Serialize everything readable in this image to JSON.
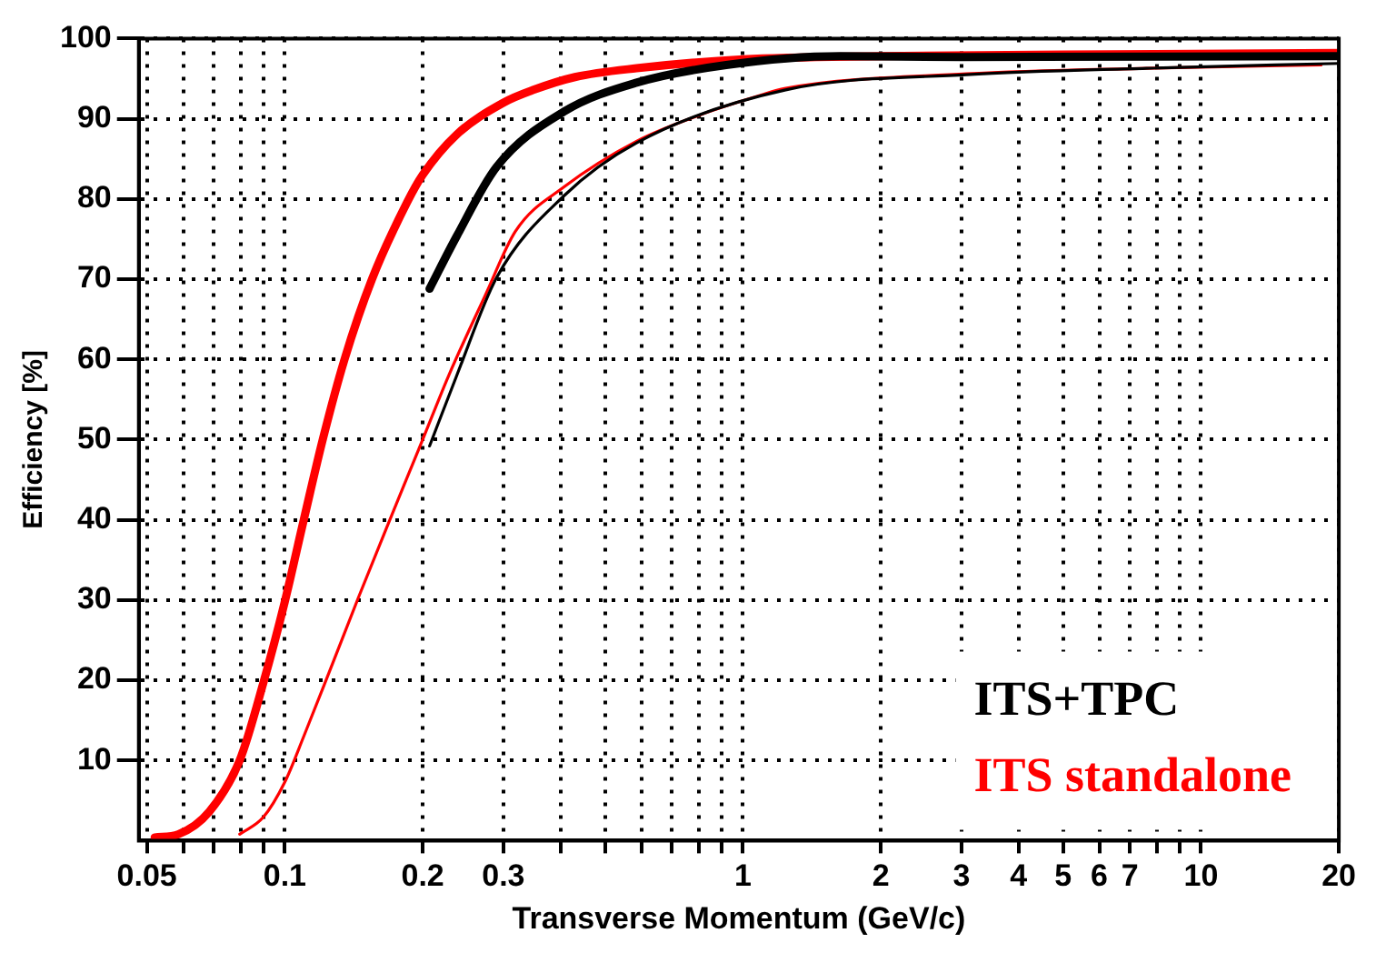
{
  "chart_data": {
    "type": "line",
    "xlabel": "Transverse Momentum (GeV/c)",
    "ylabel": "Efficiency [%]",
    "log": "x",
    "grid": true,
    "legend": "bottom right",
    "marker": "none",
    "line_style": "solid",
    "xlim": [
      0.048,
      20
    ],
    "ylim": [
      0,
      100
    ],
    "xticks": [
      0.05,
      {
        "value": 0.06,
        "label": null
      },
      {
        "value": 0.07,
        "label": null
      },
      {
        "value": 0.08,
        "label": null
      },
      {
        "value": 0.09,
        "label": null
      },
      0.1,
      0.2,
      0.3,
      {
        "value": 0.4,
        "label": null
      },
      {
        "value": 0.5,
        "label": null
      },
      {
        "value": 0.6,
        "label": null
      },
      {
        "value": 0.7,
        "label": null
      },
      {
        "value": 0.8,
        "label": null
      },
      {
        "value": 0.9,
        "label": null
      },
      1,
      2,
      3,
      4,
      5,
      6,
      7,
      {
        "value": 8,
        "label": null
      },
      {
        "value": 9,
        "label": null
      },
      10,
      20
    ],
    "yticks": [
      10,
      20,
      30,
      40,
      50,
      60,
      70,
      80,
      90,
      100
    ],
    "series": [
      {
        "name": "ITS+TPC",
        "color": "#000000",
        "x": [
          0.207,
          0.237,
          0.29,
          0.407,
          0.586,
          0.92,
          1.63,
          3,
          20
        ],
        "values": [
          68.8,
          75.3,
          84,
          90.9,
          94.5,
          96.7,
          97.8,
          97.7,
          97.8
        ]
      },
      {
        "color": "#000000",
        "x": [
          0.207,
          0.237,
          0.29,
          0.407,
          0.586,
          1.24,
          3.08,
          7.6,
          20
        ],
        "values": [
          49.2,
          57.9,
          70.2,
          80.4,
          87,
          93.6,
          95.5,
          96.3,
          96.9
        ]
      },
      {
        "color": "#ff0000",
        "x": [
          0.0797,
          0.0897,
          0.1,
          0.11,
          0.125,
          0.145,
          0.169,
          0.2,
          0.228,
          0.274,
          0.319,
          0.407,
          0.586,
          0.808,
          1.06,
          1.24,
          3.08,
          7.6,
          18.3
        ],
        "values": [
          0.8,
          2.9,
          7.3,
          13,
          21,
          30.4,
          39.8,
          50,
          58,
          68,
          76,
          81.5,
          87.2,
          90.5,
          92.7,
          93.8,
          95.6,
          96.3,
          96.7
        ]
      },
      {
        "name": "ITS standalone",
        "color": "#ff0000",
        "x": [
          0.052,
          0.0586,
          0.0684,
          0.0797,
          0.0897,
          0.1,
          0.11,
          0.121,
          0.135,
          0.155,
          0.185,
          0.2,
          0.237,
          0.3,
          0.349,
          0.43,
          0.586,
          1,
          2,
          5,
          20
        ],
        "values": [
          0.4,
          0.8,
          3.6,
          10,
          19.6,
          29.8,
          40,
          50,
          60,
          70,
          79.6,
          83,
          88,
          92,
          93.6,
          95.2,
          96.3,
          97.4,
          97.8,
          98,
          98.2
        ]
      }
    ]
  }
}
